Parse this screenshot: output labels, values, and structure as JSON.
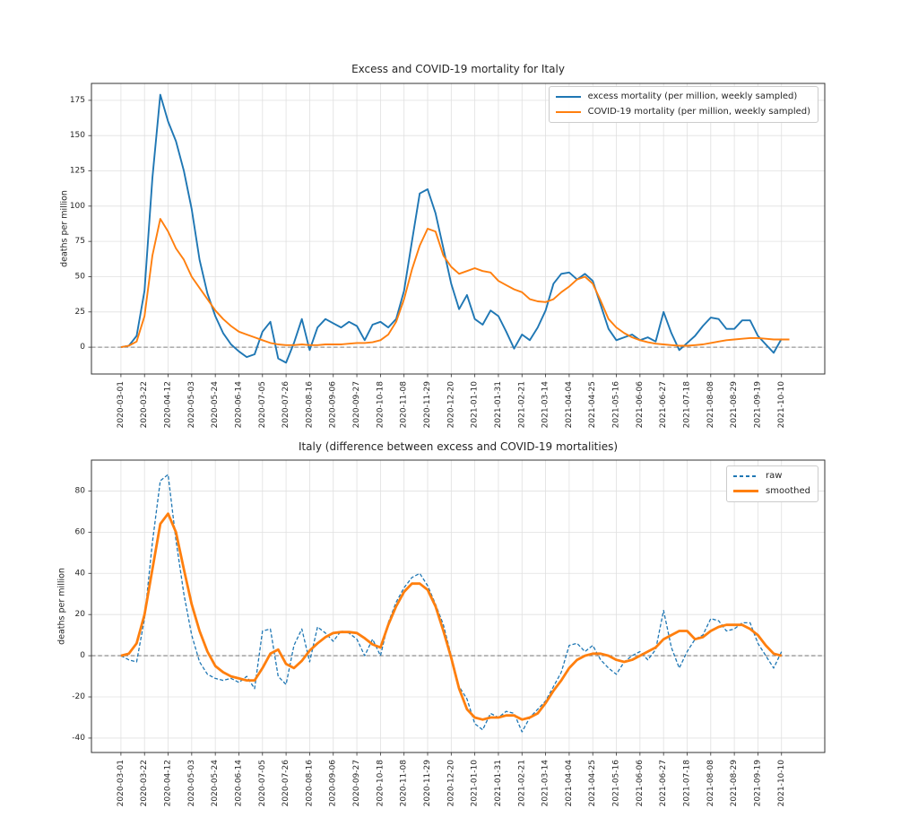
{
  "figure": {
    "background": "#ffffff",
    "grid_color": "#e0e0e0",
    "zero_line_color": "#808080",
    "spine_color": "#333333",
    "tick_label_color": "#262626"
  },
  "chart_data": [
    {
      "type": "line",
      "title": "Excess and COVID-19 mortality for Italy",
      "xlabel": "",
      "ylabel": "deaths per million",
      "grid": true,
      "zero_line": true,
      "legend_position": "upper right",
      "yticks": [
        0,
        25,
        50,
        75,
        100,
        125,
        150,
        175
      ],
      "ylim": [
        -19,
        187
      ],
      "xtick_every": 3,
      "x_dates_weekly": [
        "2020-03-01",
        "2020-03-08",
        "2020-03-15",
        "2020-03-22",
        "2020-03-29",
        "2020-04-05",
        "2020-04-12",
        "2020-04-19",
        "2020-04-26",
        "2020-05-03",
        "2020-05-10",
        "2020-05-17",
        "2020-05-24",
        "2020-05-31",
        "2020-06-07",
        "2020-06-14",
        "2020-06-21",
        "2020-06-28",
        "2020-07-05",
        "2020-07-12",
        "2020-07-19",
        "2020-07-26",
        "2020-08-02",
        "2020-08-09",
        "2020-08-16",
        "2020-08-23",
        "2020-08-30",
        "2020-09-06",
        "2020-09-13",
        "2020-09-20",
        "2020-09-27",
        "2020-10-04",
        "2020-10-11",
        "2020-10-18",
        "2020-10-25",
        "2020-11-01",
        "2020-11-08",
        "2020-11-15",
        "2020-11-22",
        "2020-11-29",
        "2020-12-06",
        "2020-12-13",
        "2020-12-20",
        "2020-12-27",
        "2021-01-03",
        "2021-01-10",
        "2021-01-17",
        "2021-01-24",
        "2021-01-31",
        "2021-02-07",
        "2021-02-14",
        "2021-02-21",
        "2021-02-28",
        "2021-03-07",
        "2021-03-14",
        "2021-03-21",
        "2021-03-28",
        "2021-04-04",
        "2021-04-11",
        "2021-04-18",
        "2021-04-25",
        "2021-05-02",
        "2021-05-09",
        "2021-05-16",
        "2021-05-23",
        "2021-05-30",
        "2021-06-06",
        "2021-06-13",
        "2021-06-20",
        "2021-06-27",
        "2021-07-04",
        "2021-07-11",
        "2021-07-18",
        "2021-07-25",
        "2021-08-01",
        "2021-08-08",
        "2021-08-15",
        "2021-08-22",
        "2021-08-29",
        "2021-09-05",
        "2021-09-12",
        "2021-09-19",
        "2021-09-26",
        "2021-10-03",
        "2021-10-10",
        "2021-10-17"
      ],
      "series": [
        {
          "name": "excess mortality (per million, weekly sampled)",
          "color": "#1f77b4",
          "style": "solid",
          "width": 1.9,
          "values": [
            0,
            1,
            8,
            40,
            120,
            179,
            160,
            146,
            125,
            98,
            62,
            38,
            22,
            10,
            2,
            -3,
            -7,
            -5,
            11,
            18,
            -8,
            -11,
            3,
            20,
            -2,
            14,
            20,
            17,
            14,
            18,
            15,
            5,
            16,
            18,
            14,
            20,
            40,
            75,
            109,
            112,
            95,
            70,
            45,
            27,
            37,
            20,
            16,
            26,
            22,
            11,
            -1,
            9,
            5,
            14,
            26,
            45,
            52,
            53,
            48,
            52,
            47,
            30,
            13,
            5,
            7,
            9,
            5,
            7,
            4,
            25,
            10,
            -2,
            3,
            8,
            15,
            21,
            20,
            13,
            13,
            19,
            19,
            8,
            2,
            -4,
            6,
            null
          ]
        },
        {
          "name": "COVID-19 mortality (per million, weekly sampled)",
          "color": "#ff7f0e",
          "style": "solid",
          "width": 1.9,
          "values": [
            0,
            1,
            4,
            22,
            65,
            91,
            82,
            70,
            62,
            50,
            42,
            34,
            26,
            20,
            15,
            11,
            9,
            7,
            5,
            3,
            2,
            1.5,
            1.5,
            2,
            1.5,
            1.5,
            2,
            2,
            2,
            2.5,
            3,
            3,
            3.5,
            5,
            9,
            18,
            34,
            55,
            72,
            84,
            82,
            65,
            57,
            52,
            54,
            56,
            54,
            53,
            47,
            44,
            41,
            39,
            34,
            32.5,
            32,
            34,
            39,
            43,
            48,
            50,
            45,
            33,
            20,
            14,
            10,
            7,
            5,
            3.5,
            2.5,
            2,
            1.5,
            1,
            1,
            1.5,
            2,
            3,
            4,
            5,
            5.5,
            6,
            6.5,
            6.5,
            6,
            5.5,
            5.5,
            5.5
          ]
        }
      ]
    },
    {
      "type": "line",
      "title": "Italy (difference between excess and COVID-19 mortalities)",
      "xlabel": "",
      "ylabel": "deaths per million",
      "grid": true,
      "zero_line": true,
      "legend_position": "upper right",
      "yticks": [
        -40,
        -20,
        0,
        20,
        40,
        60,
        80
      ],
      "ylim": [
        -47,
        95
      ],
      "xtick_every": 3,
      "x_dates_weekly": [
        "2020-03-01",
        "2020-03-08",
        "2020-03-15",
        "2020-03-22",
        "2020-03-29",
        "2020-04-05",
        "2020-04-12",
        "2020-04-19",
        "2020-04-26",
        "2020-05-03",
        "2020-05-10",
        "2020-05-17",
        "2020-05-24",
        "2020-05-31",
        "2020-06-07",
        "2020-06-14",
        "2020-06-21",
        "2020-06-28",
        "2020-07-05",
        "2020-07-12",
        "2020-07-19",
        "2020-07-26",
        "2020-08-02",
        "2020-08-09",
        "2020-08-16",
        "2020-08-23",
        "2020-08-30",
        "2020-09-06",
        "2020-09-13",
        "2020-09-20",
        "2020-09-27",
        "2020-10-04",
        "2020-10-11",
        "2020-10-18",
        "2020-10-25",
        "2020-11-01",
        "2020-11-08",
        "2020-11-15",
        "2020-11-22",
        "2020-11-29",
        "2020-12-06",
        "2020-12-13",
        "2020-12-20",
        "2020-12-27",
        "2021-01-03",
        "2021-01-10",
        "2021-01-17",
        "2021-01-24",
        "2021-01-31",
        "2021-02-07",
        "2021-02-14",
        "2021-02-21",
        "2021-02-28",
        "2021-03-07",
        "2021-03-14",
        "2021-03-21",
        "2021-03-28",
        "2021-04-04",
        "2021-04-11",
        "2021-04-18",
        "2021-04-25",
        "2021-05-02",
        "2021-05-09",
        "2021-05-16",
        "2021-05-23",
        "2021-05-30",
        "2021-06-06",
        "2021-06-13",
        "2021-06-20",
        "2021-06-27",
        "2021-07-04",
        "2021-07-11",
        "2021-07-18",
        "2021-07-25",
        "2021-08-01",
        "2021-08-08",
        "2021-08-15",
        "2021-08-22",
        "2021-08-29",
        "2021-09-05",
        "2021-09-12",
        "2021-09-19",
        "2021-09-26",
        "2021-10-03",
        "2021-10-10",
        "2021-10-17"
      ],
      "series": [
        {
          "name": "raw",
          "color": "#1f77b4",
          "style": "dashed",
          "width": 1.3,
          "values": [
            0,
            -2,
            -3,
            18,
            55,
            85,
            88,
            56,
            30,
            10,
            -3,
            -9,
            -11,
            -12,
            -11,
            -13,
            -10,
            -16,
            12,
            13,
            -10,
            -14,
            5,
            13,
            -3,
            14,
            11,
            7,
            12,
            11,
            8,
            0,
            8,
            0,
            16,
            26,
            33,
            38,
            40,
            34,
            25,
            15,
            0,
            -15,
            -21,
            -33,
            -36,
            -28,
            -30,
            -27,
            -28,
            -37,
            -30,
            -26,
            -22,
            -15,
            -8,
            5,
            6,
            2,
            5,
            -2,
            -6,
            -9,
            -3,
            0,
            2,
            -2,
            3,
            22,
            4,
            -6,
            2,
            8,
            10,
            18,
            17,
            12,
            13,
            16,
            16,
            6,
            0,
            -6,
            2,
            null
          ]
        },
        {
          "name": "smoothed",
          "color": "#ff7f0e",
          "style": "solid",
          "width": 2.8,
          "values": [
            0,
            1,
            6,
            20,
            42,
            64,
            69,
            60,
            42,
            25,
            12,
            2,
            -5,
            -8,
            -10,
            -11,
            -12,
            -12,
            -6,
            1,
            3,
            -4,
            -6,
            -2.5,
            2.5,
            6,
            9,
            11,
            11.5,
            11.5,
            11,
            8.5,
            5.5,
            4,
            15,
            24,
            31,
            35,
            35,
            32,
            24,
            12,
            -1,
            -16,
            -26,
            -30,
            -31,
            -30,
            -30,
            -29,
            -29,
            -31,
            -30,
            -28,
            -23,
            -17,
            -12,
            -6,
            -2,
            0,
            1,
            1,
            0,
            -2,
            -3,
            -2,
            0,
            2,
            4,
            8,
            10,
            12,
            12,
            8,
            9,
            12,
            14,
            15,
            15,
            15,
            13,
            10,
            5,
            1,
            0,
            null
          ]
        }
      ]
    }
  ]
}
